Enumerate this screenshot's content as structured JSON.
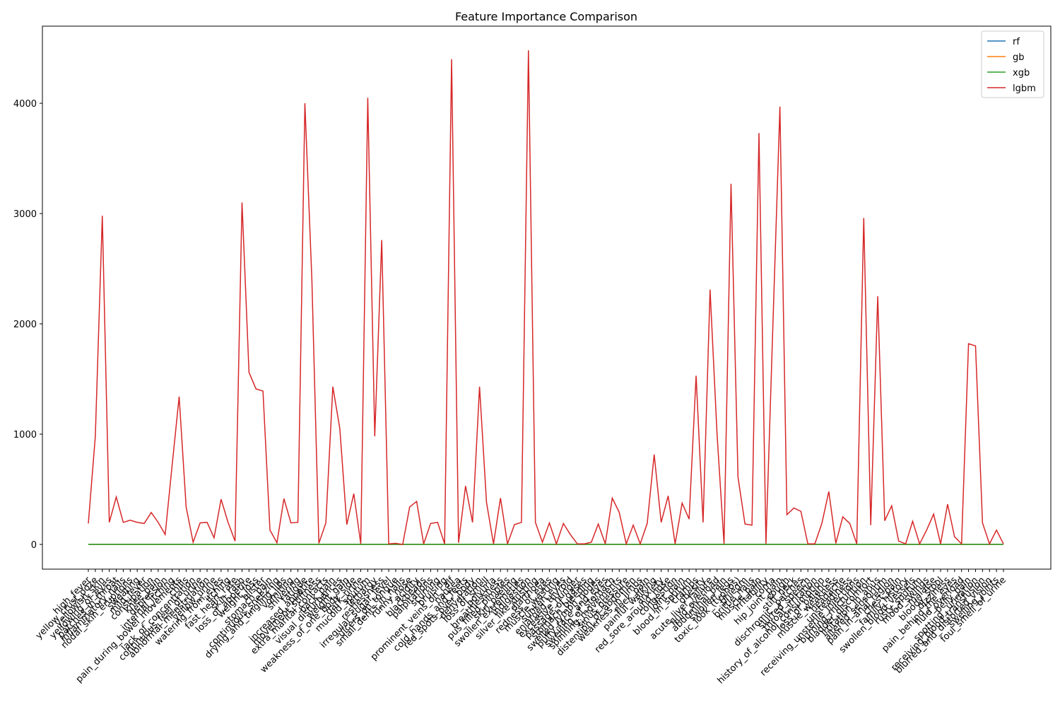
{
  "chart_data": {
    "type": "line",
    "title": "Feature Importance Comparison",
    "categories": [
      "high_fever",
      "yellow_crust_ooze",
      "yellowish_skin",
      "yellowing_of_eyes",
      "patches_in_throat",
      "inflammatory_nails",
      "nodal_skin_eruptions",
      "sweating",
      "mild_fever",
      "constipation",
      "knee_pain",
      "depression",
      "internal_itching",
      "pain_during_bowel_movements",
      "chills",
      "lack_of_concentration",
      "continuous_feel_of_urine",
      "abnormal_menstruation",
      "yellow_urine",
      "watering_from_eyes",
      "itching",
      "fast_heart_rate",
      "skin_rash",
      "loss_of_appetite",
      "weight_loss",
      "blister",
      "stomach_pain",
      "continuous_sneezing",
      "drying_and_tingling_lips",
      "vomiting",
      "shivering",
      "fatigue",
      "increased_appetite",
      "movement_stiffness",
      "extra_marital_contacts",
      "back_pain",
      "visual_disturbances",
      "weight_gain",
      "weakness_of_one_body_side",
      "dark_urine",
      "mucoid_sputum",
      "lethargy",
      "restlessness",
      "irregular_sugar_level",
      "ulcers_on_tongue",
      "small_dents_in_nails",
      "runny_nose",
      "acidity",
      "blackheads",
      "palpitations",
      "scurring",
      "bruising",
      "prominent_veins_on_calf",
      "nausea",
      "cold_hands_and_feets",
      "red_spots_over_body",
      "dehydration",
      "loss_of_smell",
      "polyuria",
      "breathlessness",
      "pus_filled_pimples",
      "skin_peeling",
      "swollen_extremeties",
      "indigestion",
      "silver_like_dusting",
      "diarrhoea",
      "redness_of_eyes",
      "muscle_wasting",
      "sunken_eyes",
      "enlarged_thyroid",
      "excessive_hunger",
      "passage_of_gases",
      "stomach_bleeding",
      "swelled_lymph_nodes",
      "puffy_face_and_eyes",
      "swelling_of_stomach",
      "spinning_movements",
      "sinus_pressure",
      "distention_of_abdomen",
      "weakness_in_limbs",
      "neck_pain",
      "painful_walking",
      "anxiety",
      "red_sore_around_nose",
      "congestion",
      "joint_pain",
      "blood_in_sputum",
      "cramps",
      "obesity",
      "acute_liver_failure",
      "fluid_overload",
      "abdominal_pain",
      "swollen_legs",
      "toxic_look_(typhos)",
      "phlegm",
      "brittle_nails",
      "muscle_pain",
      "irritability",
      "coma",
      "hip_joint_pain",
      "cough",
      "stiff_neck",
      "dischromic _patches",
      "slurred_speech",
      "throat_irritation",
      "history_of_alcohol_consumption",
      "loss_of_balance",
      "muscle_weakness",
      "headache",
      "unsteadiness",
      "receiving_unsterile_injections",
      "burning_micturition",
      "bladder_discomfort",
      "irritation_in_anus",
      "altered_sensorium",
      "pain_in_anal_region",
      "chest_pain",
      "family_history",
      "swollen_blood_vessels",
      "rusty_sputum",
      "mood_swings",
      "malaise",
      "bloody_stool",
      "dizziness",
      "pain_behind_the_eyes",
      "fluid_overload",
      "belly_pain",
      "spotting_ urination",
      "receiving_blood_transfusion",
      "blurred_and_distorted_vision",
      "swelling_joints",
      "foul_smell_of_urine"
    ],
    "series": [
      {
        "name": "rf",
        "color": "#1f77b4",
        "values": [
          0,
          0,
          0,
          0,
          0,
          0,
          0,
          0,
          0,
          0,
          0,
          0,
          0,
          0,
          0,
          0,
          0,
          0,
          0,
          0,
          0,
          0,
          0,
          0,
          0,
          0,
          0,
          0,
          0,
          0,
          0,
          0,
          0,
          0,
          0,
          0,
          0,
          0,
          0,
          0,
          0,
          0,
          0,
          0,
          0,
          0,
          0,
          0,
          0,
          0,
          0,
          0,
          0,
          0,
          0,
          0,
          0,
          0,
          0,
          0,
          0,
          0,
          0,
          0,
          0,
          0,
          0,
          0,
          0,
          0,
          0,
          0,
          0,
          0,
          0,
          0,
          0,
          0,
          0,
          0,
          0,
          0,
          0,
          0,
          0,
          0,
          0,
          0,
          0,
          0,
          0,
          0,
          0,
          0,
          0,
          0,
          0,
          0,
          0,
          0,
          0,
          0,
          0,
          0,
          0,
          0,
          0,
          0,
          0,
          0,
          0,
          0,
          0,
          0,
          0,
          0,
          0,
          0,
          0,
          0,
          0,
          0,
          0,
          0,
          0,
          0,
          0,
          0,
          0,
          0,
          0,
          0
        ]
      },
      {
        "name": "gb",
        "color": "#ff7f0e",
        "values": [
          0,
          0,
          0,
          0,
          0,
          0,
          0,
          0,
          0,
          0,
          0,
          0,
          0,
          0,
          0,
          0,
          0,
          0,
          0,
          0,
          0,
          0,
          0,
          0,
          0,
          0,
          0,
          0,
          0,
          0,
          0,
          0,
          0,
          0,
          0,
          0,
          0,
          0,
          0,
          0,
          0,
          0,
          0,
          0,
          0,
          0,
          0,
          0,
          0,
          0,
          0,
          0,
          0,
          0,
          0,
          0,
          0,
          0,
          0,
          0,
          0,
          0,
          0,
          0,
          0,
          0,
          0,
          0,
          0,
          0,
          0,
          0,
          0,
          0,
          0,
          0,
          0,
          0,
          0,
          0,
          0,
          0,
          0,
          0,
          0,
          0,
          0,
          0,
          0,
          0,
          0,
          0,
          0,
          0,
          0,
          0,
          0,
          0,
          0,
          0,
          0,
          0,
          0,
          0,
          0,
          0,
          0,
          0,
          0,
          0,
          0,
          0,
          0,
          0,
          0,
          0,
          0,
          0,
          0,
          0,
          0,
          0,
          0,
          0,
          0,
          0,
          0,
          0,
          0,
          0,
          0,
          0
        ]
      },
      {
        "name": "xgb",
        "color": "#2ca02c",
        "values": [
          0,
          0,
          0,
          0,
          0,
          0,
          0,
          0,
          0,
          0,
          0,
          0,
          0,
          0,
          0,
          0,
          0,
          0,
          0,
          0,
          0,
          0,
          0,
          0,
          0,
          0,
          0,
          0,
          0,
          0,
          0,
          0,
          0,
          0,
          0,
          0,
          0,
          0,
          0,
          0,
          0,
          0,
          0,
          0,
          0,
          0,
          0,
          0,
          0,
          0,
          0,
          0,
          0,
          0,
          0,
          0,
          0,
          0,
          0,
          0,
          0,
          0,
          0,
          0,
          0,
          0,
          0,
          0,
          0,
          0,
          0,
          0,
          0,
          0,
          0,
          0,
          0,
          0,
          0,
          0,
          0,
          0,
          0,
          0,
          0,
          0,
          0,
          0,
          0,
          0,
          0,
          0,
          0,
          0,
          0,
          0,
          0,
          0,
          0,
          0,
          0,
          0,
          0,
          0,
          0,
          0,
          0,
          0,
          0,
          0,
          0,
          0,
          0,
          0,
          0,
          0,
          0,
          0,
          0,
          0,
          0,
          0,
          0,
          0,
          0,
          0,
          0,
          0,
          0,
          0,
          0,
          0
        ]
      },
      {
        "name": "lgbm",
        "color": "#d62728",
        "values": [
          190,
          980,
          2980,
          200,
          430,
          200,
          220,
          200,
          190,
          290,
          200,
          90,
          720,
          1340,
          340,
          20,
          195,
          200,
          60,
          410,
          200,
          30,
          3100,
          1560,
          1410,
          1390,
          130,
          15,
          415,
          195,
          200,
          4000,
          2400,
          10,
          195,
          1430,
          1050,
          180,
          460,
          5,
          4050,
          980,
          2760,
          5,
          10,
          0,
          340,
          390,
          5,
          190,
          200,
          5,
          4400,
          15,
          530,
          200,
          1430,
          380,
          5,
          420,
          5,
          180,
          200,
          4480,
          200,
          20,
          195,
          5,
          190,
          90,
          5,
          5,
          20,
          185,
          5,
          420,
          290,
          5,
          175,
          5,
          190,
          815,
          200,
          440,
          5,
          375,
          230,
          1530,
          200,
          2310,
          1000,
          5,
          3270,
          610,
          185,
          175,
          3730,
          5,
          2000,
          3970,
          270,
          330,
          300,
          5,
          5,
          190,
          480,
          10,
          250,
          190,
          5,
          2960,
          175,
          2250,
          215,
          350,
          30,
          5,
          210,
          5,
          130,
          275,
          5,
          365,
          70,
          5,
          1820,
          1800,
          195,
          5,
          130,
          5
        ]
      }
    ],
    "ylim": [
      -224,
      4699
    ],
    "yticks": [
      0,
      1000,
      2000,
      3000,
      4000
    ],
    "legend": "upper right",
    "grid": false
  }
}
